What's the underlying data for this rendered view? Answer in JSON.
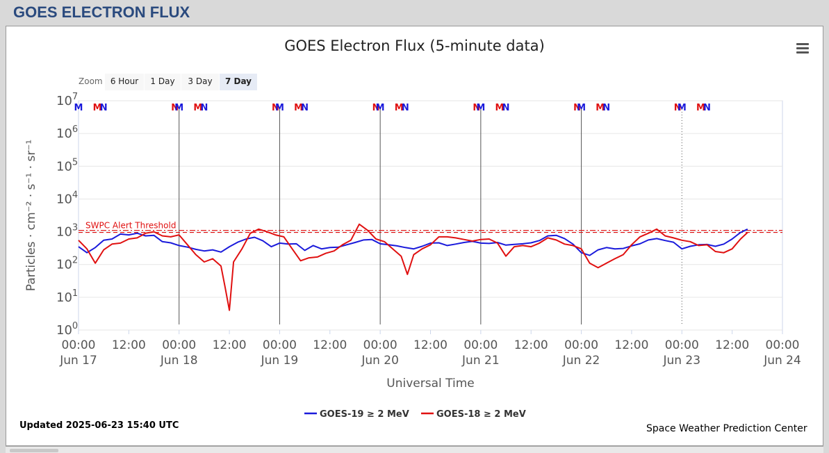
{
  "page": {
    "title": "GOES ELECTRON FLUX"
  },
  "zoom": {
    "label": "Zoom",
    "buttons": [
      "6 Hour",
      "1 Day",
      "3 Day",
      "7 Day"
    ],
    "active": "7 Day"
  },
  "footer": {
    "updated": "Updated 2025-06-23 15:40 UTC",
    "credit": "Space Weather Prediction Center"
  },
  "colors": {
    "goes19": "#1a1adb",
    "goes18": "#e01010",
    "threshold": "#e01010",
    "header": "#2a4a7e"
  },
  "icons": {
    "menu": "hamburger-menu-icon"
  },
  "chart_data": {
    "type": "line",
    "title": "GOES Electron Flux (5-minute data)",
    "xlabel": "Universal Time",
    "ylabel": "Particles · cm⁻² · s⁻¹ · sr⁻¹",
    "y_scale": "log",
    "ylim": [
      1,
      10000000
    ],
    "y_ticks": [
      {
        "base": "10",
        "exp": "0"
      },
      {
        "base": "10",
        "exp": "1"
      },
      {
        "base": "10",
        "exp": "2"
      },
      {
        "base": "10",
        "exp": "3"
      },
      {
        "base": "10",
        "exp": "4"
      },
      {
        "base": "10",
        "exp": "5"
      },
      {
        "base": "10",
        "exp": "6"
      },
      {
        "base": "10",
        "exp": "7"
      }
    ],
    "x_range": [
      "2025-06-17T00:00",
      "2025-06-24T00:00"
    ],
    "x_ticks": [
      {
        "time": "00:00",
        "date": "Jun 17"
      },
      {
        "time": "12:00",
        "date": ""
      },
      {
        "time": "00:00",
        "date": "Jun 18"
      },
      {
        "time": "12:00",
        "date": ""
      },
      {
        "time": "00:00",
        "date": "Jun 19"
      },
      {
        "time": "12:00",
        "date": ""
      },
      {
        "time": "00:00",
        "date": "Jun 20"
      },
      {
        "time": "12:00",
        "date": ""
      },
      {
        "time": "00:00",
        "date": "Jun 21"
      },
      {
        "time": "12:00",
        "date": ""
      },
      {
        "time": "00:00",
        "date": "Jun 22"
      },
      {
        "time": "12:00",
        "date": ""
      },
      {
        "time": "00:00",
        "date": "Jun 23"
      },
      {
        "time": "12:00",
        "date": ""
      },
      {
        "time": "00:00",
        "date": "Jun 24"
      }
    ],
    "threshold": {
      "label": "SWPC Alert Threshold",
      "value": 1000
    },
    "legend": {
      "position": "bottom-center"
    },
    "series": [
      {
        "name": "GOES-19 ≥ 2 MeV",
        "color": "#1a1adb",
        "points": [
          [
            "2025-06-17T00:00",
            350
          ],
          [
            "2025-06-17T02:00",
            230
          ],
          [
            "2025-06-17T04:00",
            330
          ],
          [
            "2025-06-17T06:00",
            550
          ],
          [
            "2025-06-17T08:00",
            600
          ],
          [
            "2025-06-17T10:00",
            850
          ],
          [
            "2025-06-17T12:00",
            800
          ],
          [
            "2025-06-17T14:00",
            900
          ],
          [
            "2025-06-17T16:00",
            750
          ],
          [
            "2025-06-17T18:00",
            780
          ],
          [
            "2025-06-17T20:00",
            500
          ],
          [
            "2025-06-17T22:00",
            460
          ],
          [
            "2025-06-18T00:00",
            380
          ],
          [
            "2025-06-18T02:00",
            340
          ],
          [
            "2025-06-18T04:00",
            290
          ],
          [
            "2025-06-18T06:00",
            260
          ],
          [
            "2025-06-18T08:00",
            280
          ],
          [
            "2025-06-18T10:00",
            240
          ],
          [
            "2025-06-18T12:00",
            350
          ],
          [
            "2025-06-18T14:00",
            480
          ],
          [
            "2025-06-18T16:00",
            600
          ],
          [
            "2025-06-18T18:00",
            680
          ],
          [
            "2025-06-18T20:00",
            530
          ],
          [
            "2025-06-18T22:00",
            350
          ],
          [
            "2025-06-19T00:00",
            450
          ],
          [
            "2025-06-19T02:00",
            420
          ],
          [
            "2025-06-19T04:00",
            430
          ],
          [
            "2025-06-19T06:00",
            270
          ],
          [
            "2025-06-19T08:00",
            380
          ],
          [
            "2025-06-19T10:00",
            300
          ],
          [
            "2025-06-19T12:00",
            330
          ],
          [
            "2025-06-19T14:00",
            340
          ],
          [
            "2025-06-19T16:00",
            400
          ],
          [
            "2025-06-19T18:00",
            470
          ],
          [
            "2025-06-19T20:00",
            560
          ],
          [
            "2025-06-19T22:00",
            580
          ],
          [
            "2025-06-20T00:00",
            430
          ],
          [
            "2025-06-20T02:00",
            400
          ],
          [
            "2025-06-20T04:00",
            370
          ],
          [
            "2025-06-20T06:00",
            330
          ],
          [
            "2025-06-20T08:00",
            300
          ],
          [
            "2025-06-20T10:00",
            360
          ],
          [
            "2025-06-20T12:00",
            450
          ],
          [
            "2025-06-20T14:00",
            460
          ],
          [
            "2025-06-20T16:00",
            380
          ],
          [
            "2025-06-20T18:00",
            420
          ],
          [
            "2025-06-20T20:00",
            470
          ],
          [
            "2025-06-20T22:00",
            510
          ],
          [
            "2025-06-21T00:00",
            450
          ],
          [
            "2025-06-21T02:00",
            440
          ],
          [
            "2025-06-21T04:00",
            470
          ],
          [
            "2025-06-21T06:00",
            390
          ],
          [
            "2025-06-21T08:00",
            410
          ],
          [
            "2025-06-21T10:00",
            430
          ],
          [
            "2025-06-21T12:00",
            460
          ],
          [
            "2025-06-21T14:00",
            540
          ],
          [
            "2025-06-21T16:00",
            750
          ],
          [
            "2025-06-21T18:00",
            780
          ],
          [
            "2025-06-21T20:00",
            620
          ],
          [
            "2025-06-21T22:00",
            420
          ],
          [
            "2025-06-22T00:00",
            230
          ],
          [
            "2025-06-22T02:00",
            190
          ],
          [
            "2025-06-22T04:00",
            280
          ],
          [
            "2025-06-22T06:00",
            330
          ],
          [
            "2025-06-22T08:00",
            300
          ],
          [
            "2025-06-22T10:00",
            310
          ],
          [
            "2025-06-22T12:00",
            370
          ],
          [
            "2025-06-22T14:00",
            430
          ],
          [
            "2025-06-22T16:00",
            560
          ],
          [
            "2025-06-22T18:00",
            620
          ],
          [
            "2025-06-22T20:00",
            540
          ],
          [
            "2025-06-22T22:00",
            480
          ],
          [
            "2025-06-23T00:00",
            300
          ],
          [
            "2025-06-23T02:00",
            360
          ],
          [
            "2025-06-23T04:00",
            400
          ],
          [
            "2025-06-23T06:00",
            410
          ],
          [
            "2025-06-23T08:00",
            360
          ],
          [
            "2025-06-23T10:00",
            420
          ],
          [
            "2025-06-23T12:00",
            600
          ],
          [
            "2025-06-23T14:00",
            950
          ],
          [
            "2025-06-23T15:40",
            1200
          ]
        ]
      },
      {
        "name": "GOES-18 ≥ 2 MeV",
        "color": "#e01010",
        "points": [
          [
            "2025-06-17T00:00",
            550
          ],
          [
            "2025-06-17T02:00",
            300
          ],
          [
            "2025-06-17T04:00",
            110
          ],
          [
            "2025-06-17T06:00",
            280
          ],
          [
            "2025-06-17T08:00",
            420
          ],
          [
            "2025-06-17T10:00",
            450
          ],
          [
            "2025-06-17T12:00",
            600
          ],
          [
            "2025-06-17T14:00",
            650
          ],
          [
            "2025-06-17T16:00",
            900
          ],
          [
            "2025-06-17T18:00",
            1000
          ],
          [
            "2025-06-17T20:00",
            750
          ],
          [
            "2025-06-17T22:00",
            700
          ],
          [
            "2025-06-18T00:00",
            800
          ],
          [
            "2025-06-18T02:00",
            400
          ],
          [
            "2025-06-18T04:00",
            200
          ],
          [
            "2025-06-18T06:00",
            120
          ],
          [
            "2025-06-18T08:00",
            150
          ],
          [
            "2025-06-18T10:00",
            90
          ],
          [
            "2025-06-18T11:00",
            20
          ],
          [
            "2025-06-18T12:00",
            4
          ],
          [
            "2025-06-18T13:00",
            120
          ],
          [
            "2025-06-18T15:00",
            300
          ],
          [
            "2025-06-18T17:00",
            900
          ],
          [
            "2025-06-18T19:00",
            1200
          ],
          [
            "2025-06-18T21:00",
            1000
          ],
          [
            "2025-06-18T23:00",
            800
          ],
          [
            "2025-06-19T01:00",
            700
          ],
          [
            "2025-06-19T03:00",
            300
          ],
          [
            "2025-06-19T05:00",
            130
          ],
          [
            "2025-06-19T07:00",
            160
          ],
          [
            "2025-06-19T09:00",
            170
          ],
          [
            "2025-06-19T11:00",
            220
          ],
          [
            "2025-06-19T13:00",
            260
          ],
          [
            "2025-06-19T15:00",
            400
          ],
          [
            "2025-06-19T17:00",
            550
          ],
          [
            "2025-06-19T19:00",
            1700
          ],
          [
            "2025-06-19T21:00",
            1100
          ],
          [
            "2025-06-19T23:00",
            600
          ],
          [
            "2025-06-20T01:00",
            500
          ],
          [
            "2025-06-20T03:00",
            300
          ],
          [
            "2025-06-20T05:00",
            180
          ],
          [
            "2025-06-20T06:30",
            50
          ],
          [
            "2025-06-20T08:00",
            200
          ],
          [
            "2025-06-20T10:00",
            300
          ],
          [
            "2025-06-20T12:00",
            400
          ],
          [
            "2025-06-20T14:00",
            700
          ],
          [
            "2025-06-20T16:00",
            700
          ],
          [
            "2025-06-20T18:00",
            650
          ],
          [
            "2025-06-20T20:00",
            580
          ],
          [
            "2025-06-20T22:00",
            520
          ],
          [
            "2025-06-21T00:00",
            580
          ],
          [
            "2025-06-21T02:00",
            600
          ],
          [
            "2025-06-21T04:00",
            450
          ],
          [
            "2025-06-21T06:00",
            180
          ],
          [
            "2025-06-21T08:00",
            350
          ],
          [
            "2025-06-21T10:00",
            380
          ],
          [
            "2025-06-21T12:00",
            350
          ],
          [
            "2025-06-21T14:00",
            450
          ],
          [
            "2025-06-21T16:00",
            650
          ],
          [
            "2025-06-21T18:00",
            560
          ],
          [
            "2025-06-21T20:00",
            420
          ],
          [
            "2025-06-21T22:00",
            380
          ],
          [
            "2025-06-22T00:00",
            300
          ],
          [
            "2025-06-22T02:00",
            110
          ],
          [
            "2025-06-22T04:00",
            80
          ],
          [
            "2025-06-22T06:00",
            110
          ],
          [
            "2025-06-22T08:00",
            150
          ],
          [
            "2025-06-22T10:00",
            200
          ],
          [
            "2025-06-22T12:00",
            400
          ],
          [
            "2025-06-22T14:00",
            700
          ],
          [
            "2025-06-22T16:00",
            900
          ],
          [
            "2025-06-22T18:00",
            1200
          ],
          [
            "2025-06-22T20:00",
            750
          ],
          [
            "2025-06-22T22:00",
            650
          ],
          [
            "2025-06-23T00:00",
            550
          ],
          [
            "2025-06-23T02:00",
            500
          ],
          [
            "2025-06-23T04:00",
            380
          ],
          [
            "2025-06-23T06:00",
            400
          ],
          [
            "2025-06-23T08:00",
            250
          ],
          [
            "2025-06-23T10:00",
            230
          ],
          [
            "2025-06-23T12:00",
            300
          ],
          [
            "2025-06-23T14:00",
            600
          ],
          [
            "2025-06-23T15:40",
            950
          ]
        ]
      }
    ],
    "markers": [
      {
        "label": "M",
        "time": "2025-06-17T00:00",
        "color": "#1a1adb"
      },
      {
        "label": "M",
        "time": "2025-06-17T04:30",
        "color": "#e01010"
      },
      {
        "label": "N",
        "time": "2025-06-17T06:00",
        "color": "#1a1adb"
      },
      {
        "label": "N",
        "time": "2025-06-17T23:00",
        "color": "#e01010"
      },
      {
        "label": "M",
        "time": "2025-06-18T00:00",
        "color": "#1a1adb"
      },
      {
        "label": "M",
        "time": "2025-06-18T04:30",
        "color": "#e01010"
      },
      {
        "label": "N",
        "time": "2025-06-18T06:00",
        "color": "#1a1adb"
      },
      {
        "label": "N",
        "time": "2025-06-18T23:00",
        "color": "#e01010"
      },
      {
        "label": "M",
        "time": "2025-06-19T00:00",
        "color": "#1a1adb"
      },
      {
        "label": "M",
        "time": "2025-06-19T04:30",
        "color": "#e01010"
      },
      {
        "label": "N",
        "time": "2025-06-19T06:00",
        "color": "#1a1adb"
      },
      {
        "label": "N",
        "time": "2025-06-19T23:00",
        "color": "#e01010"
      },
      {
        "label": "M",
        "time": "2025-06-20T00:00",
        "color": "#1a1adb"
      },
      {
        "label": "M",
        "time": "2025-06-20T04:30",
        "color": "#e01010"
      },
      {
        "label": "N",
        "time": "2025-06-20T06:00",
        "color": "#1a1adb"
      },
      {
        "label": "N",
        "time": "2025-06-20T23:00",
        "color": "#e01010"
      },
      {
        "label": "M",
        "time": "2025-06-21T00:00",
        "color": "#1a1adb"
      },
      {
        "label": "M",
        "time": "2025-06-21T04:30",
        "color": "#e01010"
      },
      {
        "label": "N",
        "time": "2025-06-21T06:00",
        "color": "#1a1adb"
      },
      {
        "label": "N",
        "time": "2025-06-21T23:00",
        "color": "#e01010"
      },
      {
        "label": "M",
        "time": "2025-06-22T00:00",
        "color": "#1a1adb"
      },
      {
        "label": "M",
        "time": "2025-06-22T04:30",
        "color": "#e01010"
      },
      {
        "label": "N",
        "time": "2025-06-22T06:00",
        "color": "#1a1adb"
      },
      {
        "label": "N",
        "time": "2025-06-22T23:00",
        "color": "#e01010"
      },
      {
        "label": "M",
        "time": "2025-06-23T00:00",
        "color": "#1a1adb"
      },
      {
        "label": "M",
        "time": "2025-06-23T04:30",
        "color": "#e01010"
      },
      {
        "label": "N",
        "time": "2025-06-23T06:00",
        "color": "#1a1adb"
      }
    ],
    "vertical_lines": [
      {
        "time": "2025-06-18T00:00",
        "style": "solid"
      },
      {
        "time": "2025-06-19T00:00",
        "style": "solid"
      },
      {
        "time": "2025-06-20T00:00",
        "style": "solid"
      },
      {
        "time": "2025-06-21T00:00",
        "style": "solid"
      },
      {
        "time": "2025-06-22T00:00",
        "style": "solid"
      },
      {
        "time": "2025-06-23T00:00",
        "style": "dotted"
      }
    ]
  }
}
